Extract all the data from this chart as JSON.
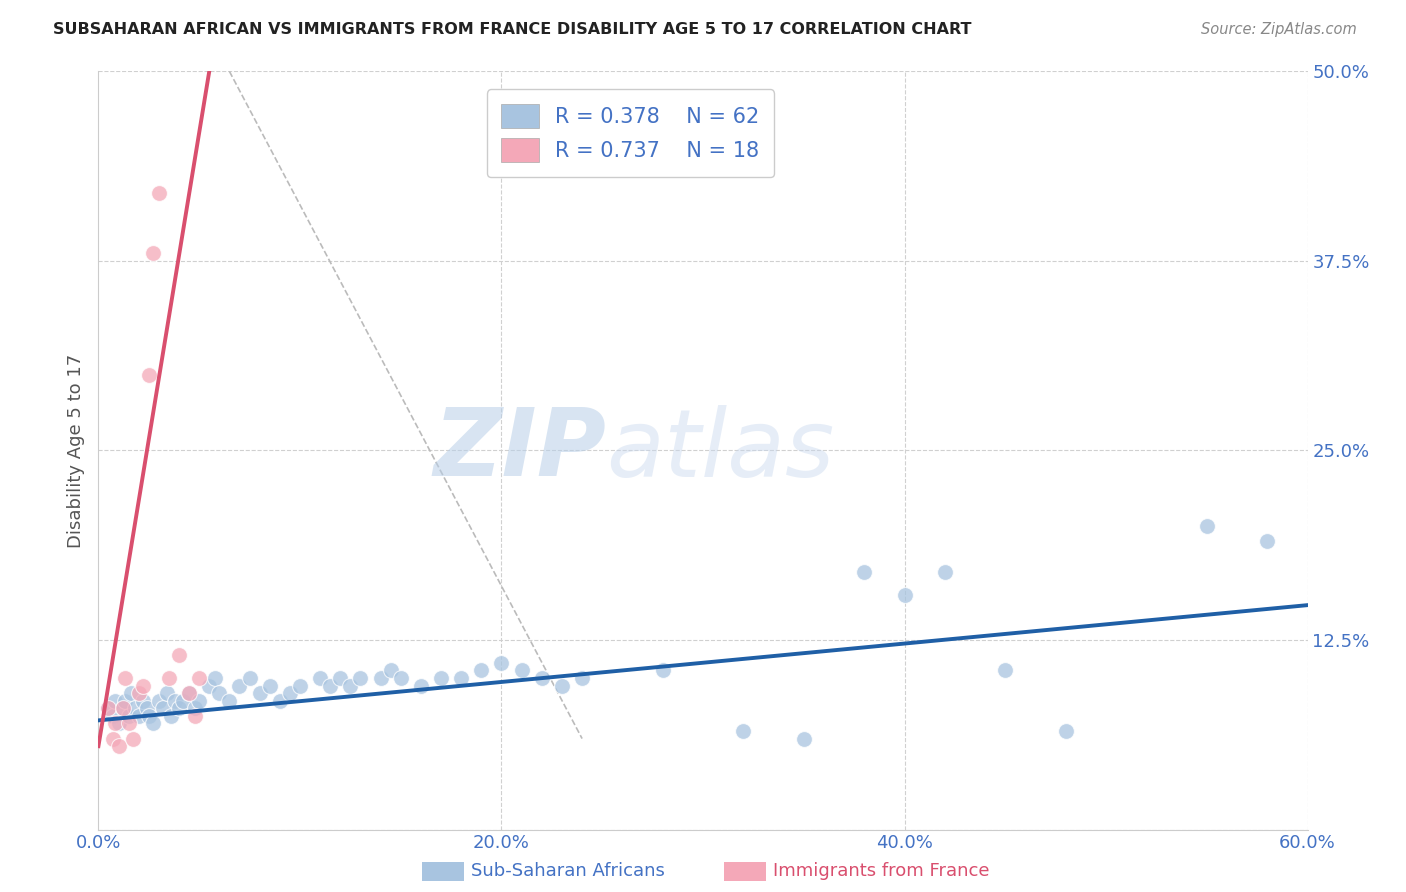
{
  "title": "SUBSAHARAN AFRICAN VS IMMIGRANTS FROM FRANCE DISABILITY AGE 5 TO 17 CORRELATION CHART",
  "source": "Source: ZipAtlas.com",
  "xlabel_blue": "Sub-Saharan Africans",
  "xlabel_pink": "Immigrants from France",
  "ylabel": "Disability Age 5 to 17",
  "xlim": [
    0.0,
    0.6
  ],
  "ylim": [
    0.0,
    0.5
  ],
  "xticks": [
    0.0,
    0.2,
    0.4,
    0.6
  ],
  "xticklabels": [
    "0.0%",
    "20.0%",
    "40.0%",
    "60.0%"
  ],
  "yticks_right": [
    0.0,
    0.125,
    0.25,
    0.375,
    0.5
  ],
  "yticklabels_right": [
    "",
    "12.5%",
    "25.0%",
    "37.5%",
    "50.0%"
  ],
  "legend_blue_r": "R = 0.378",
  "legend_blue_n": "N = 62",
  "legend_pink_r": "R = 0.737",
  "legend_pink_n": "N = 18",
  "blue_color": "#a8c4e0",
  "blue_line_color": "#1f5fa6",
  "pink_color": "#f4a8b8",
  "pink_line_color": "#d94f6e",
  "grid_color": "#d0d0d0",
  "title_color": "#333333",
  "axis_label_color": "#4472c4",
  "blue_scatter_x": [
    0.005,
    0.007,
    0.008,
    0.01,
    0.012,
    0.013,
    0.015,
    0.016,
    0.018,
    0.02,
    0.022,
    0.024,
    0.025,
    0.027,
    0.03,
    0.032,
    0.034,
    0.036,
    0.038,
    0.04,
    0.042,
    0.045,
    0.048,
    0.05,
    0.055,
    0.058,
    0.06,
    0.065,
    0.07,
    0.075,
    0.08,
    0.085,
    0.09,
    0.095,
    0.1,
    0.11,
    0.115,
    0.12,
    0.125,
    0.13,
    0.14,
    0.145,
    0.15,
    0.16,
    0.17,
    0.18,
    0.19,
    0.2,
    0.21,
    0.22,
    0.23,
    0.24,
    0.28,
    0.32,
    0.35,
    0.38,
    0.4,
    0.42,
    0.45,
    0.48,
    0.55,
    0.58
  ],
  "blue_scatter_y": [
    0.08,
    0.075,
    0.085,
    0.07,
    0.08,
    0.085,
    0.075,
    0.09,
    0.08,
    0.075,
    0.085,
    0.08,
    0.075,
    0.07,
    0.085,
    0.08,
    0.09,
    0.075,
    0.085,
    0.08,
    0.085,
    0.09,
    0.08,
    0.085,
    0.095,
    0.1,
    0.09,
    0.085,
    0.095,
    0.1,
    0.09,
    0.095,
    0.085,
    0.09,
    0.095,
    0.1,
    0.095,
    0.1,
    0.095,
    0.1,
    0.1,
    0.105,
    0.1,
    0.095,
    0.1,
    0.1,
    0.105,
    0.11,
    0.105,
    0.1,
    0.095,
    0.1,
    0.105,
    0.065,
    0.06,
    0.17,
    0.155,
    0.17,
    0.105,
    0.065,
    0.2,
    0.19
  ],
  "pink_scatter_x": [
    0.005,
    0.007,
    0.008,
    0.01,
    0.012,
    0.013,
    0.015,
    0.017,
    0.02,
    0.022,
    0.025,
    0.027,
    0.03,
    0.035,
    0.04,
    0.045,
    0.048,
    0.05
  ],
  "pink_scatter_y": [
    0.08,
    0.06,
    0.07,
    0.055,
    0.08,
    0.1,
    0.07,
    0.06,
    0.09,
    0.095,
    0.3,
    0.38,
    0.42,
    0.1,
    0.115,
    0.09,
    0.075,
    0.1
  ],
  "blue_trend_x": [
    0.0,
    0.6
  ],
  "blue_trend_y": [
    0.072,
    0.148
  ],
  "pink_trend_x": [
    0.0,
    0.055
  ],
  "pink_trend_y": [
    0.055,
    0.5
  ],
  "dashed_line_x": [
    0.065,
    0.24
  ],
  "dashed_line_y": [
    0.5,
    0.06
  ],
  "watermark_line1": "ZIP",
  "watermark_line2": "atlas"
}
